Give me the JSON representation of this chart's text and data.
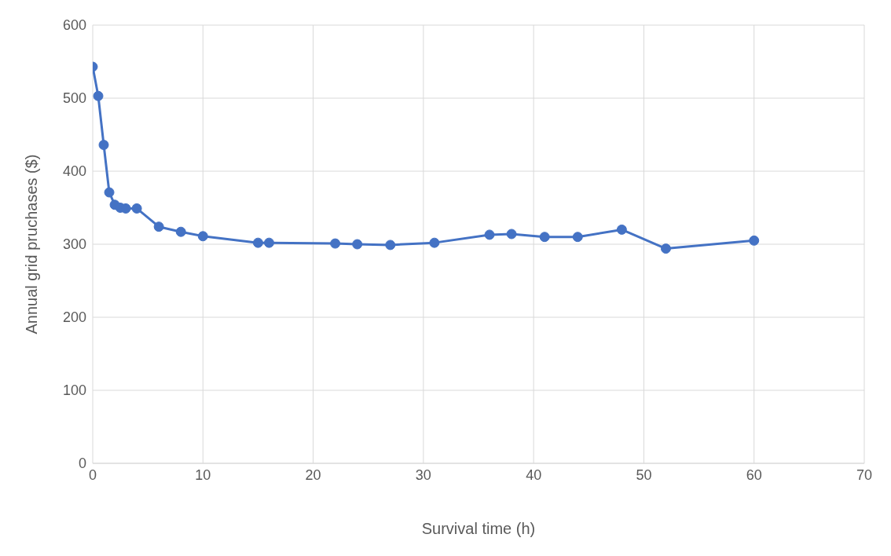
{
  "chart_data": {
    "type": "line",
    "xlabel": "Survival time (h)",
    "ylabel": "Annual grid pruchases ($)",
    "x": [
      0,
      0.5,
      1,
      1.5,
      2,
      2.5,
      3,
      4,
      6,
      8,
      10,
      15,
      16,
      22,
      24,
      27,
      31,
      36,
      38,
      41,
      44,
      48,
      52,
      60
    ],
    "series": [
      {
        "color": "#4472c4",
        "values": [
          543,
          503,
          436,
          371,
          354,
          350,
          349,
          349,
          324,
          317,
          311,
          302,
          302,
          301,
          300,
          299,
          302,
          313,
          314,
          310,
          310,
          320,
          294,
          305
        ]
      }
    ],
    "xlim": [
      0,
      70
    ],
    "xticks": [
      0,
      10,
      20,
      30,
      40,
      50,
      60,
      70
    ],
    "ylim": [
      0,
      600
    ],
    "yticks": [
      0,
      100,
      200,
      300,
      400,
      500,
      600
    ],
    "grid": true,
    "legend": false,
    "marker": "circle",
    "line_style": "solid"
  }
}
